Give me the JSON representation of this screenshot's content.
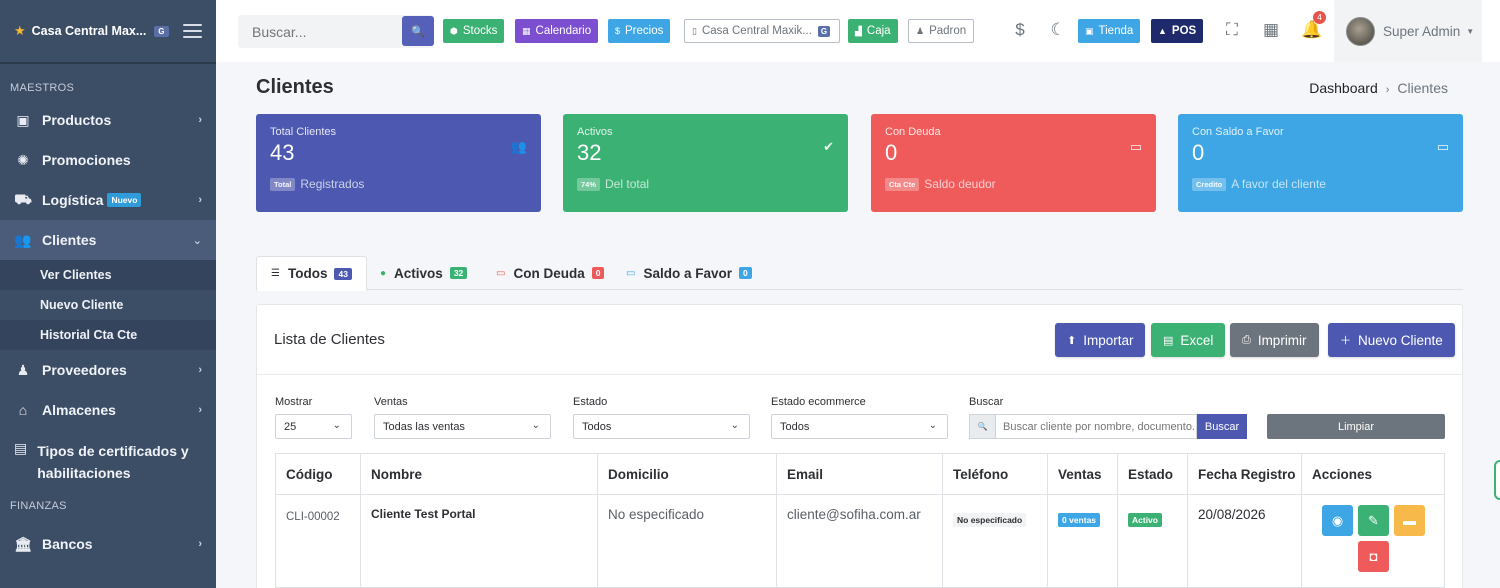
{
  "sidebar": {
    "brand": "Casa Central Max...",
    "brand_badge": "G",
    "section_maestros": "MAESTROS",
    "section_finanzas": "FINANZAS",
    "items": [
      {
        "label": "Productos"
      },
      {
        "label": "Promociones"
      },
      {
        "label": "Logística",
        "badge": "Nuevo"
      },
      {
        "label": "Clientes"
      },
      {
        "label": "Proveedores"
      },
      {
        "label": "Almacenes"
      },
      {
        "label": "Tipos de certificados y habilitaciones"
      },
      {
        "label": "Bancos"
      }
    ],
    "clientes_sub": [
      {
        "label": "Ver Clientes"
      },
      {
        "label": "Nuevo Cliente"
      },
      {
        "label": "Historial Cta Cte"
      }
    ]
  },
  "topbar": {
    "search_placeholder": "Buscar...",
    "buttons": {
      "stocks": "Stocks",
      "calendario": "Calendario",
      "precios": "Precios",
      "sucursal": "Casa Central Maxik...",
      "sucursal_badge": "G",
      "caja": "Caja",
      "padron": "Padron",
      "tienda": "Tienda",
      "pos": "POS"
    },
    "currency_symbol": "$",
    "notifications_count": "4",
    "user_name": "Super Admin"
  },
  "page": {
    "title": "Clientes",
    "breadcrumb": [
      "Dashboard",
      "Clientes"
    ]
  },
  "stats": [
    {
      "label": "Total Clientes",
      "value": "43",
      "pill": "Total",
      "desc": "Registrados",
      "color": "#4d59b1"
    },
    {
      "label": "Activos",
      "value": "32",
      "pill": "74%",
      "desc": "Del total",
      "color": "#3bb274"
    },
    {
      "label": "Con Deuda",
      "value": "0",
      "pill": "Cta Cte",
      "desc": "Saldo deudor",
      "color": "#ef5b5b"
    },
    {
      "label": "Con Saldo a Favor",
      "value": "0",
      "pill": "Credito",
      "desc": "A favor del cliente",
      "color": "#3ea6e4"
    }
  ],
  "tabs": [
    {
      "label": "Todos",
      "count": "43"
    },
    {
      "label": "Activos",
      "count": "32"
    },
    {
      "label": "Con Deuda",
      "count": "0"
    },
    {
      "label": "Saldo a Favor",
      "count": "0"
    }
  ],
  "card": {
    "title": "Lista de Clientes",
    "actions": {
      "importar": "Importar",
      "excel": "Excel",
      "imprimir": "Imprimir",
      "nuevo": "Nuevo Cliente"
    }
  },
  "filters": {
    "mostrar": {
      "label": "Mostrar",
      "value": "25"
    },
    "ventas": {
      "label": "Ventas",
      "value": "Todas las ventas"
    },
    "estado": {
      "label": "Estado",
      "value": "Todos"
    },
    "estado_ecommerce": {
      "label": "Estado ecommerce",
      "value": "Todos"
    },
    "buscar": {
      "label": "Buscar",
      "placeholder": "Buscar cliente por nombre, documento...",
      "button": "Buscar"
    },
    "limpiar": "Limpiar"
  },
  "table": {
    "columns": [
      "Código",
      "Nombre",
      "Domicilio",
      "Email",
      "Teléfono",
      "Ventas",
      "Estado",
      "Fecha Registro",
      "Acciones"
    ],
    "rows": [
      {
        "codigo": "CLI-00002",
        "nombre": "Cliente Test Portal",
        "domicilio": "No especificado",
        "email": "cliente@sofiha.com.ar",
        "telefono": "No especificado",
        "ventas": "0 ventas",
        "estado": "Activo",
        "fecha": "20/08/2026"
      }
    ]
  }
}
